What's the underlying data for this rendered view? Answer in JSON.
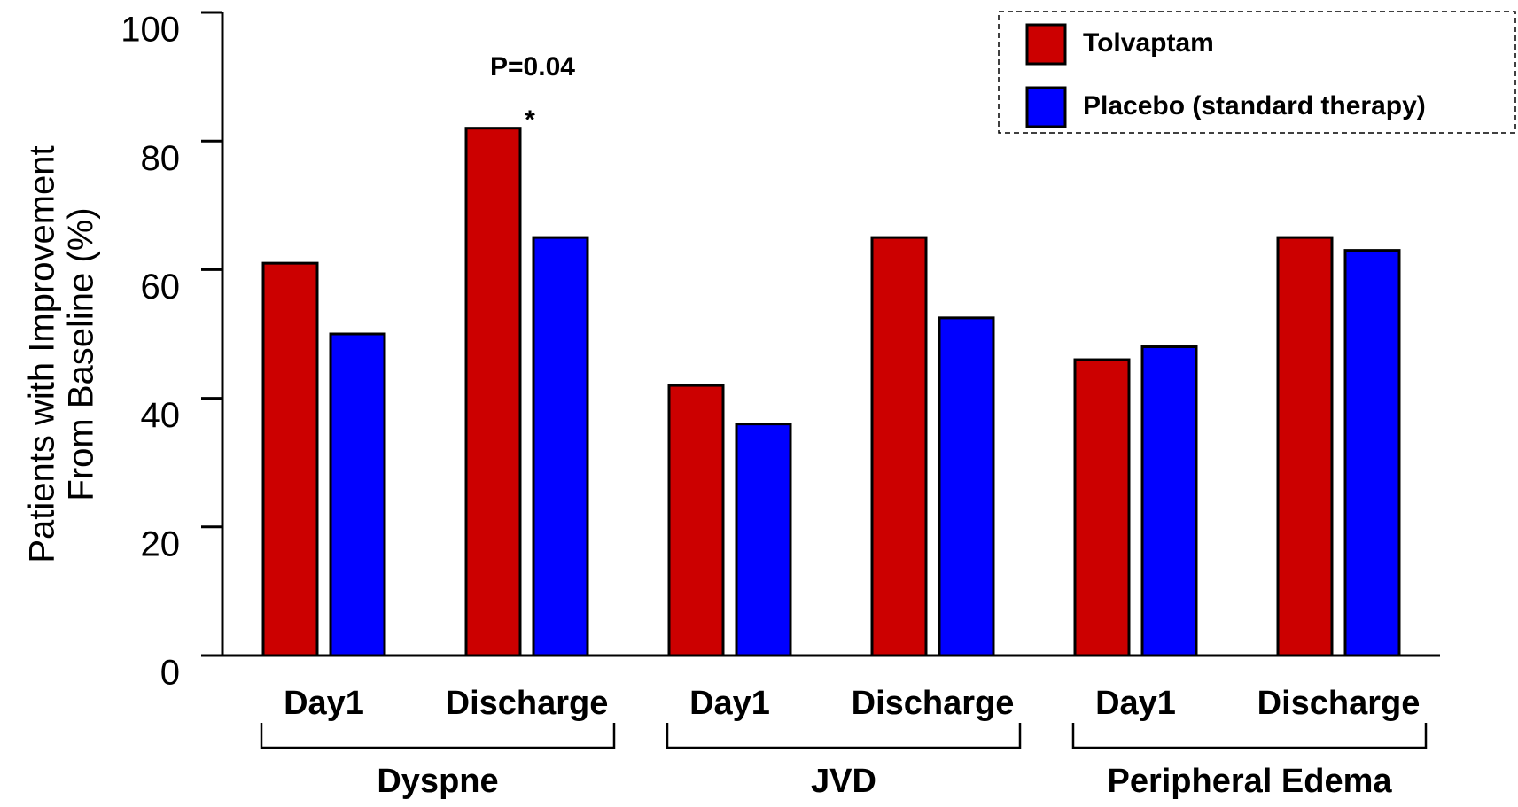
{
  "chart_data": {
    "type": "bar",
    "ylabel": [
      "Patients with Improvement",
      "From Baseline (%)"
    ],
    "categories": [
      "Day1",
      "Discharge",
      "Day1",
      "Discharge",
      "Day1",
      "Discharge"
    ],
    "groups": [
      "Dyspne",
      "JVD",
      "Peripheral Edema"
    ],
    "series": [
      {
        "name": "Tolvaptam",
        "color": "#cc0000",
        "values": [
          61,
          82,
          42,
          65,
          46,
          65
        ]
      },
      {
        "name": "Placebo (standard therapy)",
        "color": "#0000ff",
        "values": [
          50,
          65,
          36,
          52.5,
          48,
          63
        ]
      }
    ],
    "annotations": [
      "P=0.04",
      "*"
    ],
    "ylim": [
      0,
      100
    ],
    "yticks": [
      0,
      20,
      40,
      60,
      80,
      100
    ],
    "legend": "upper right"
  }
}
